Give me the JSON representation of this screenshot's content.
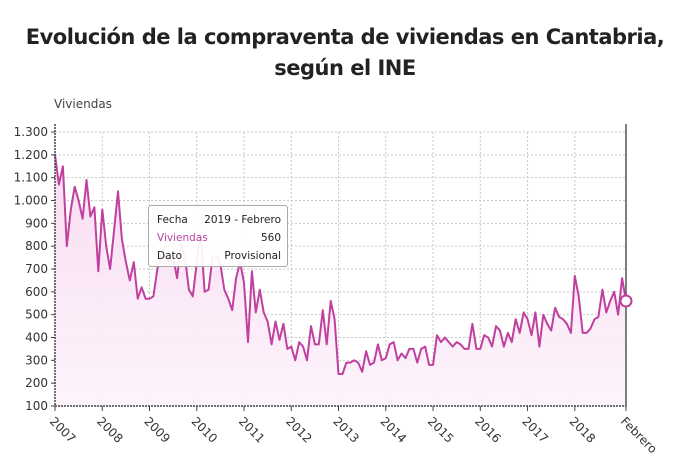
{
  "chart_data": {
    "type": "area",
    "title": "Evolución de la compraventa de viviendas en Cantabria, según el INE",
    "title_lines": [
      "Evolución de la compraventa de viviendas en Cantabria,",
      "según el INE"
    ],
    "ylabel": "Viviendas",
    "xlabel": "",
    "ylim": [
      100,
      1300
    ],
    "yticks": [
      100,
      200,
      300,
      400,
      500,
      600,
      700,
      800,
      900,
      1000,
      1100,
      1200,
      1300
    ],
    "ytick_labels": [
      "100",
      "200",
      "300",
      "400",
      "500",
      "600",
      "700",
      "800",
      "900",
      "1.000",
      "1.100",
      "1.200",
      "1.300"
    ],
    "xtick_labels": [
      "2007",
      "2008",
      "2009",
      "2010",
      "2011",
      "2012",
      "2013",
      "2014",
      "2015",
      "2016",
      "2017",
      "2018",
      "Febrero"
    ],
    "x_start": "2007-01",
    "x_end": "2019-02",
    "frequency": "monthly",
    "grid": true,
    "line_color": "#c0409f",
    "fill_color": "#fbeaf6",
    "series": [
      {
        "values": [
          1200,
          1070,
          1150,
          800,
          960,
          1060,
          1000,
          920,
          1090,
          930,
          970,
          690,
          960,
          800,
          700,
          870,
          1040,
          830,
          730,
          650,
          730,
          570,
          620,
          570,
          570,
          580,
          700,
          760,
          760,
          730,
          750,
          660,
          810,
          750,
          610,
          580,
          730,
          860,
          600,
          610,
          750,
          760,
          720,
          610,
          570,
          520,
          660,
          730,
          640,
          380,
          690,
          510,
          610,
          510,
          470,
          370,
          470,
          390,
          460,
          350,
          360,
          300,
          380,
          360,
          300,
          450,
          370,
          370,
          520,
          370,
          560,
          480,
          240,
          240,
          290,
          290,
          300,
          290,
          250,
          340,
          280,
          290,
          370,
          300,
          310,
          370,
          380,
          300,
          330,
          310,
          350,
          350,
          290,
          350,
          360,
          280,
          280,
          410,
          380,
          400,
          380,
          360,
          380,
          370,
          350,
          350,
          460,
          350,
          350,
          410,
          400,
          360,
          450,
          430,
          360,
          420,
          380,
          480,
          420,
          510,
          480,
          410,
          510,
          360,
          500,
          460,
          430,
          530,
          490,
          480,
          460,
          420,
          670,
          580,
          420,
          420,
          440,
          480,
          490,
          610,
          510,
          560,
          600,
          500,
          660,
          560
        ]
      }
    ],
    "tooltip": {
      "fecha_label": "Fecha",
      "fecha_value": "2019 - Febrero",
      "series_label": "Viviendas",
      "series_value": "560",
      "dato_label": "Dato",
      "dato_value": "Provisional"
    }
  }
}
